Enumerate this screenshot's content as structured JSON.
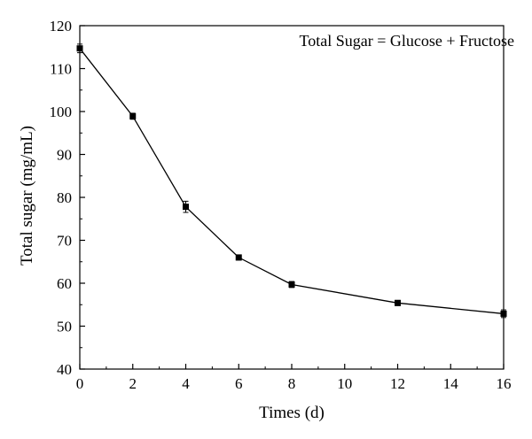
{
  "chart_data": {
    "type": "line",
    "xlabel": "Times (d)",
    "ylabel": "Total sugar (mg/mL)",
    "annotation": "Total Sugar = Glucose + Fructose",
    "xlim": [
      0,
      16
    ],
    "ylim": [
      40,
      120
    ],
    "x_ticks": [
      "0",
      "2",
      "4",
      "6",
      "8",
      "10",
      "12",
      "14",
      "16"
    ],
    "y_ticks": [
      "40",
      "50",
      "60",
      "70",
      "80",
      "90",
      "100",
      "110",
      "120"
    ],
    "grid": false,
    "series": [
      {
        "x": [
          0,
          2,
          4,
          6,
          8,
          12,
          16
        ],
        "y": [
          114.7,
          98.9,
          77.8,
          66.0,
          59.7,
          55.4,
          52.9
        ],
        "error": [
          1.0,
          0.7,
          1.3,
          0.6,
          0.7,
          0.6,
          0.9
        ]
      }
    ]
  }
}
